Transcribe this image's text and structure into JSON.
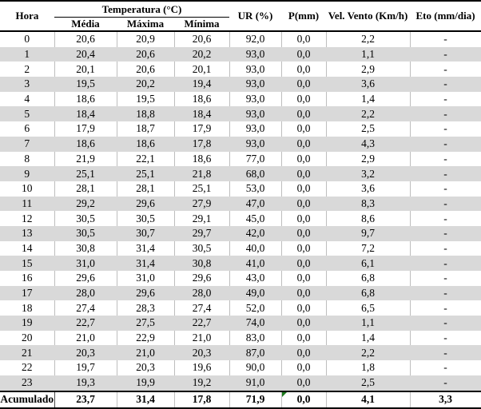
{
  "table": {
    "header": {
      "hora": "Hora",
      "temperatura_group": "Temperatura (°C)",
      "temp_sub": [
        "Média",
        "Máxima",
        "Mínima"
      ],
      "ur": "UR (%)",
      "p": "P(mm)",
      "vento": "Vel. Vento (Km/h)",
      "eto": "Eto (mm/dia)"
    },
    "column_keys": [
      "hora",
      "media",
      "maxima",
      "minima",
      "ur",
      "p",
      "vel-vento",
      "eto"
    ],
    "rows": [
      [
        "0",
        "20,6",
        "20,9",
        "20,6",
        "92,0",
        "0,0",
        "2,2",
        "-"
      ],
      [
        "1",
        "20,4",
        "20,6",
        "20,2",
        "93,0",
        "0,0",
        "1,1",
        "-"
      ],
      [
        "2",
        "20,1",
        "20,6",
        "20,1",
        "93,0",
        "0,0",
        "2,9",
        "-"
      ],
      [
        "3",
        "19,5",
        "20,2",
        "19,4",
        "93,0",
        "0,0",
        "3,6",
        "-"
      ],
      [
        "4",
        "18,6",
        "19,5",
        "18,6",
        "93,0",
        "0,0",
        "1,4",
        "-"
      ],
      [
        "5",
        "18,4",
        "18,8",
        "18,4",
        "93,0",
        "0,0",
        "2,2",
        "-"
      ],
      [
        "6",
        "17,9",
        "18,7",
        "17,9",
        "93,0",
        "0,0",
        "2,5",
        "-"
      ],
      [
        "7",
        "18,6",
        "18,6",
        "17,8",
        "93,0",
        "0,0",
        "4,3",
        "-"
      ],
      [
        "8",
        "21,9",
        "22,1",
        "18,6",
        "77,0",
        "0,0",
        "2,9",
        "-"
      ],
      [
        "9",
        "25,1",
        "25,1",
        "21,8",
        "68,0",
        "0,0",
        "3,2",
        "-"
      ],
      [
        "10",
        "28,1",
        "28,1",
        "25,1",
        "53,0",
        "0,0",
        "3,6",
        "-"
      ],
      [
        "11",
        "29,2",
        "29,6",
        "27,9",
        "47,0",
        "0,0",
        "8,3",
        "-"
      ],
      [
        "12",
        "30,5",
        "30,5",
        "29,1",
        "45,0",
        "0,0",
        "8,6",
        "-"
      ],
      [
        "13",
        "30,5",
        "30,7",
        "29,7",
        "42,0",
        "0,0",
        "9,7",
        "-"
      ],
      [
        "14",
        "30,8",
        "31,4",
        "30,5",
        "40,0",
        "0,0",
        "7,2",
        "-"
      ],
      [
        "15",
        "31,0",
        "31,4",
        "30,8",
        "41,0",
        "0,0",
        "6,1",
        "-"
      ],
      [
        "16",
        "29,6",
        "31,0",
        "29,6",
        "43,0",
        "0,0",
        "6,8",
        "-"
      ],
      [
        "17",
        "28,0",
        "29,6",
        "28,0",
        "49,0",
        "0,0",
        "6,8",
        "-"
      ],
      [
        "18",
        "27,4",
        "28,3",
        "27,4",
        "52,0",
        "0,0",
        "6,5",
        "-"
      ],
      [
        "19",
        "22,7",
        "27,5",
        "22,7",
        "74,0",
        "0,0",
        "1,1",
        "-"
      ],
      [
        "20",
        "21,0",
        "22,9",
        "21,0",
        "83,0",
        "0,0",
        "1,4",
        "-"
      ],
      [
        "21",
        "20,3",
        "21,0",
        "20,3",
        "87,0",
        "0,0",
        "2,2",
        "-"
      ],
      [
        "22",
        "19,7",
        "20,3",
        "19,6",
        "90,0",
        "0,0",
        "1,8",
        "-"
      ],
      [
        "23",
        "19,3",
        "19,9",
        "19,2",
        "91,0",
        "0,0",
        "2,5",
        "-"
      ]
    ],
    "footer": [
      "Acumulado",
      "23,7",
      "31,4",
      "17,8",
      "71,9",
      "0,0",
      "4,1",
      "3,3"
    ]
  },
  "colors": {
    "band": "#d9d9d9",
    "grid": "#bebebe",
    "border": "#000000",
    "flag_green": "#1e7b1e"
  }
}
